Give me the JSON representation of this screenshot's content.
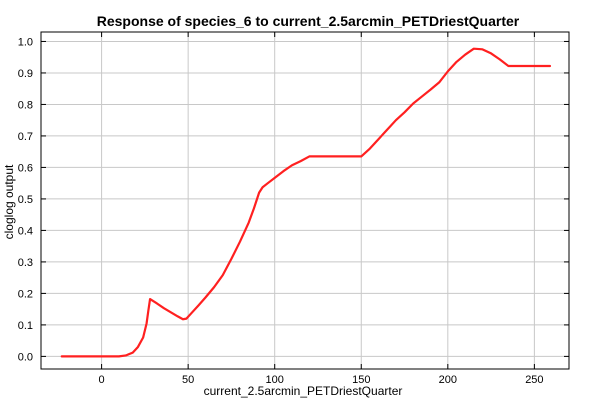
{
  "chart_data": {
    "type": "line",
    "title": "Response of species_6 to current_2.5arcmin_PETDriestQuarter",
    "xlabel": "current_2.5arcmin_PETDriestQuarter",
    "ylabel": "cloglog output",
    "xlim": [
      -35,
      270
    ],
    "ylim": [
      -0.04,
      1.03
    ],
    "x_ticks": [
      0,
      50,
      100,
      150,
      200,
      250
    ],
    "y_ticks": [
      0.0,
      0.1,
      0.2,
      0.3,
      0.4,
      0.5,
      0.6,
      0.7,
      0.8,
      0.9,
      1.0
    ],
    "grid": true,
    "line_color": "#ff2020",
    "series": [
      {
        "x": [
          -23,
          0,
          10,
          14,
          18,
          21,
          24,
          26,
          27,
          28,
          32,
          36,
          40,
          44,
          47,
          49,
          52,
          56,
          60,
          65,
          70,
          75,
          80,
          85,
          88,
          91,
          93,
          96,
          100,
          105,
          110,
          115,
          120,
          130,
          140,
          150,
          155,
          160,
          165,
          170,
          175,
          180,
          185,
          190,
          195,
          200,
          205,
          210,
          215,
          220,
          225,
          230,
          235,
          240,
          250,
          259
        ],
        "y": [
          0.0,
          0.0,
          0.0,
          0.003,
          0.012,
          0.03,
          0.06,
          0.105,
          0.145,
          0.182,
          0.168,
          0.153,
          0.14,
          0.127,
          0.118,
          0.12,
          0.138,
          0.162,
          0.187,
          0.22,
          0.258,
          0.31,
          0.365,
          0.425,
          0.47,
          0.52,
          0.537,
          0.55,
          0.567,
          0.588,
          0.607,
          0.62,
          0.635,
          0.635,
          0.635,
          0.635,
          0.66,
          0.69,
          0.72,
          0.75,
          0.775,
          0.803,
          0.825,
          0.847,
          0.87,
          0.905,
          0.935,
          0.958,
          0.977,
          0.975,
          0.962,
          0.943,
          0.922,
          0.922,
          0.922,
          0.922
        ]
      }
    ]
  }
}
